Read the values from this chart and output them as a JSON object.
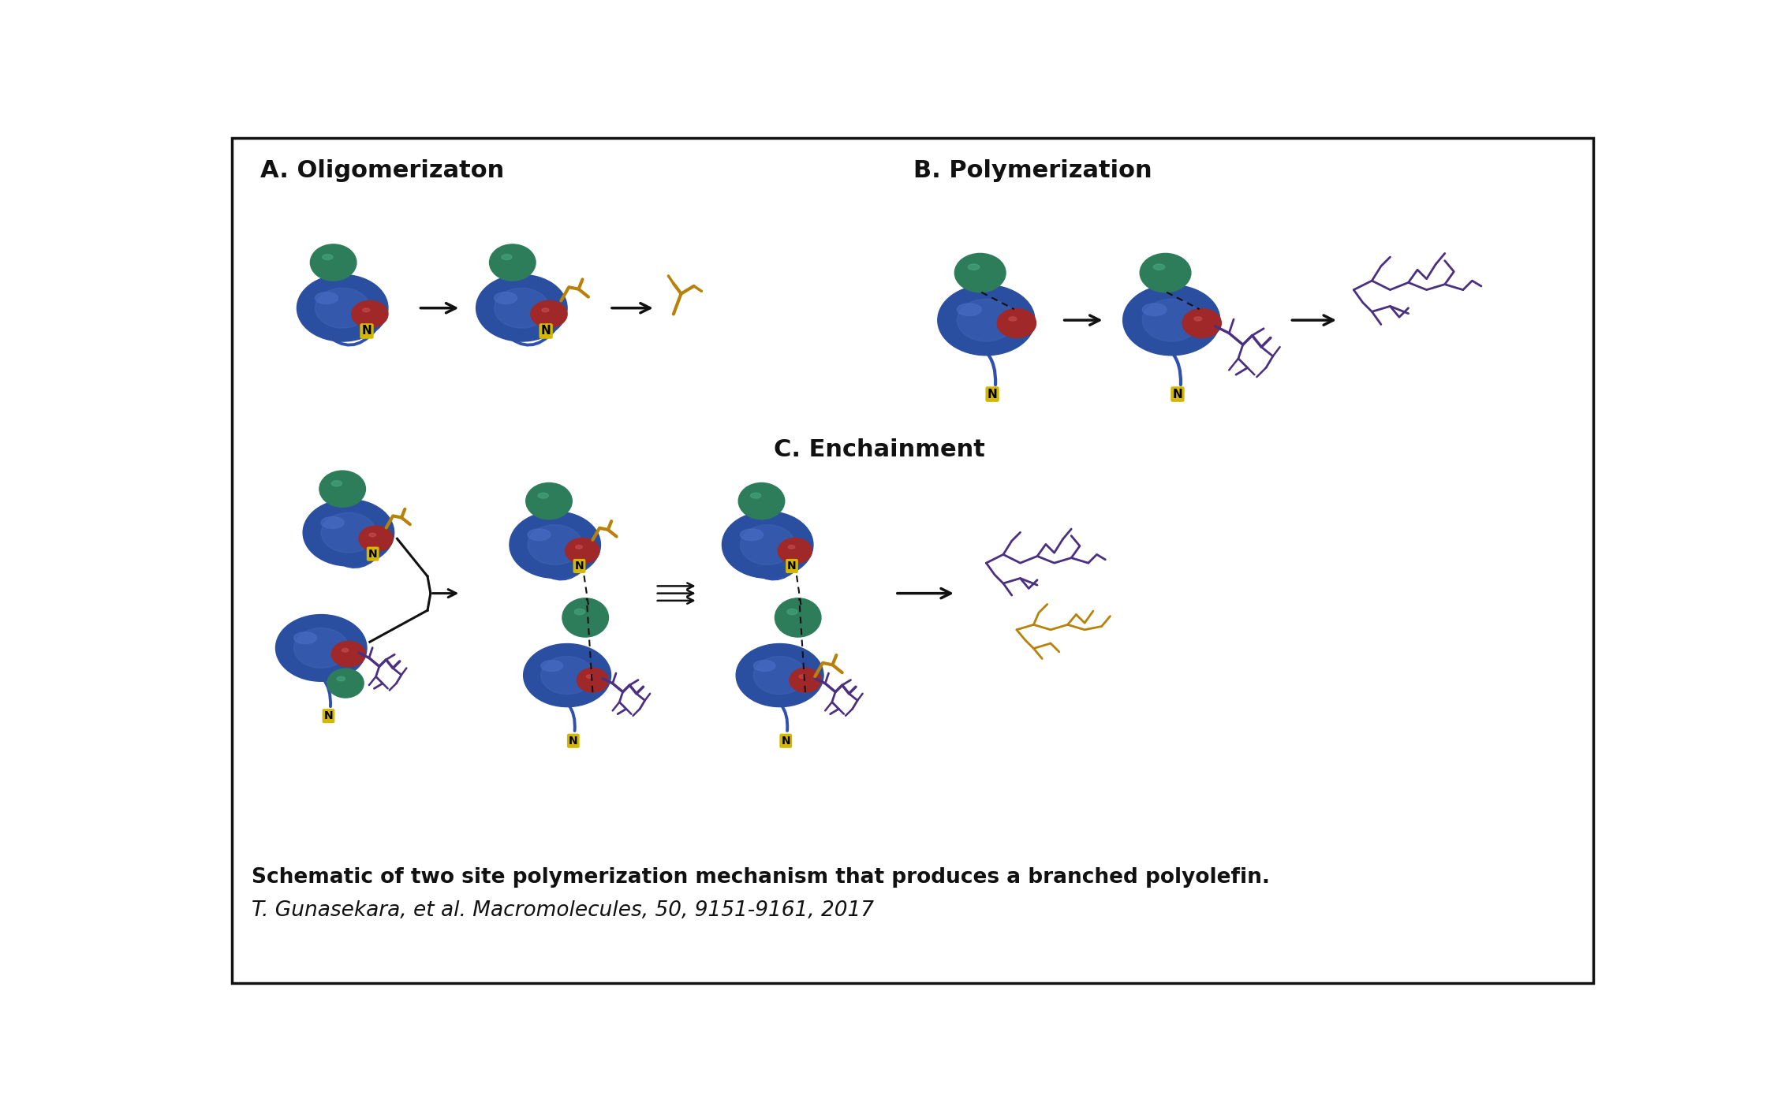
{
  "bg_color": "#ffffff",
  "border_color": "#222222",
  "title_A": "A. Oligomerizaton",
  "title_B": "B. Polymerization",
  "title_C": "C. Enchainment",
  "caption_bold": "Schematic of two site polymerization mechanism that produces a branched polyolefin.",
  "caption_normal": "T. Gunasekara, et al. Macromolecules, 50, 9151-9161, 2017",
  "colors": {
    "blue": "#2B4FA0",
    "blue_hi": "#4A70C8",
    "teal": "#2E7D5A",
    "teal_hi": "#4AAA80",
    "red": "#A02828",
    "red_hi": "#CC5050",
    "gold": "#B8820A",
    "purple": "#4A3080",
    "N_bg": "#D4B800",
    "N_text": "#000000",
    "dark": "#111111",
    "ligand_blue": "#3050B0"
  },
  "figsize": [
    22.58,
    14.08
  ],
  "dpi": 100
}
